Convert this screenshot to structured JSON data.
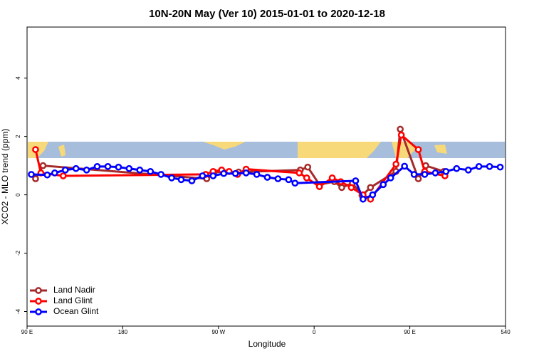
{
  "chart_data": {
    "type": "line",
    "title": "10N-20N May (Ver 10)   2015-01-01 to 2020-12-18",
    "x_label": "Longitude",
    "y_label": "XCO2 - MLO trend (ppm)",
    "xlim": [
      90,
      540
    ],
    "ylim": [
      -4.5,
      5.75
    ],
    "xticks": [
      {
        "value": 90,
        "label": "90 E"
      },
      180,
      {
        "value": 270,
        "label": "90 W"
      },
      {
        "value": 360,
        "label": "0"
      },
      {
        "value": 450,
        "label": "90 E"
      },
      540
    ],
    "yticks": [
      -4,
      -2,
      0,
      2,
      4
    ],
    "legend": "bottom-left",
    "series": [
      {
        "name": "Land Nadir",
        "color": "#a52a2a",
        "x": [
          98,
          105,
          259,
          266,
          289,
          347,
          354,
          365,
          379,
          386,
          396,
          405,
          413,
          437,
          441,
          458,
          465,
          482
        ],
        "values": [
          0.55,
          1.0,
          0.55,
          0.78,
          0.78,
          0.85,
          0.95,
          0.35,
          0.45,
          0.25,
          0.4,
          -0.02,
          0.25,
          0.8,
          2.25,
          0.55,
          1.0,
          0.8
        ]
      },
      {
        "name": "Land Glint",
        "color": "#ff0000",
        "x": [
          98,
          103,
          124,
          258,
          265,
          273,
          280,
          288,
          296,
          346,
          353,
          365,
          377,
          385,
          395,
          406,
          413,
          437,
          442,
          458,
          464,
          483
        ],
        "values": [
          1.55,
          0.75,
          0.65,
          0.7,
          0.8,
          0.85,
          0.8,
          0.7,
          0.88,
          0.75,
          0.58,
          0.28,
          0.58,
          0.45,
          0.25,
          0.0,
          -0.15,
          1.05,
          2.05,
          1.55,
          0.8,
          0.65
        ]
      },
      {
        "name": "Ocean Glint",
        "color": "#0000ff",
        "x": [
          94,
          109,
          116,
          126,
          136,
          146,
          156,
          166,
          176,
          186,
          196,
          206,
          216,
          226,
          235,
          245,
          255,
          265,
          275,
          286,
          296,
          306,
          316,
          326,
          336,
          342,
          399,
          406,
          415,
          425,
          432,
          445,
          454,
          464,
          474,
          484,
          494,
          505,
          515,
          525,
          535
        ],
        "values": [
          0.7,
          0.68,
          0.75,
          0.85,
          0.9,
          0.85,
          0.97,
          0.97,
          0.95,
          0.9,
          0.85,
          0.8,
          0.7,
          0.58,
          0.52,
          0.48,
          0.65,
          0.65,
          0.73,
          0.73,
          0.75,
          0.7,
          0.6,
          0.55,
          0.52,
          0.4,
          0.48,
          -0.15,
          0.0,
          0.35,
          0.58,
          0.98,
          0.7,
          0.7,
          0.75,
          0.8,
          0.9,
          0.85,
          0.97,
          0.97,
          0.95
        ]
      }
    ]
  }
}
